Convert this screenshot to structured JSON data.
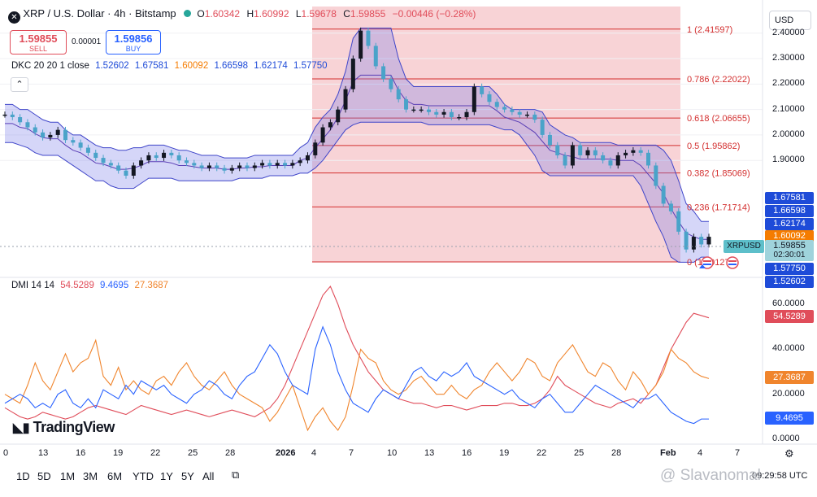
{
  "header": {
    "symbol_title": "XRP / U.S. Dollar · 4h · Bitstamp",
    "ohlc": {
      "o_label": "O",
      "o": "1.60342",
      "h_label": "H",
      "h": "1.60992",
      "l_label": "L",
      "l": "1.59678",
      "c_label": "C",
      "c": "1.59855",
      "change": "−0.00446 (−0.28%)"
    },
    "sell_price": "1.59855",
    "sell_label": "SELL",
    "spread": "0.00001",
    "buy_price": "1.59856",
    "buy_label": "BUY",
    "currency": "USD"
  },
  "indicators": {
    "dkc": {
      "label": "DKC 20 20 1 close",
      "values": [
        "1.52602",
        "1.67581",
        "1.60092",
        "1.66598",
        "1.62174",
        "1.57750"
      ]
    },
    "dmi": {
      "label": "DMI 14 14",
      "values": [
        "54.5289",
        "9.4695",
        "27.3687"
      ]
    },
    "collapse_icon": "chevron-up-icon"
  },
  "fib_levels": [
    {
      "label": "1 (2.41597)",
      "price": 2.41597
    },
    {
      "label": "0.786 (2.22022)",
      "price": 2.22022
    },
    {
      "label": "0.618 (2.06655)",
      "price": 2.06655
    },
    {
      "label": "0.5 (1.95862)",
      "price": 1.95862
    },
    {
      "label": "0.382 (1.85069)",
      "price": 1.85069
    },
    {
      "label": "0.236 (1.71714)",
      "price": 1.71714
    },
    {
      "label": "0 (1.50127)",
      "price": 1.50127
    }
  ],
  "price_axis": {
    "ticks": [
      "2.40000",
      "2.30000",
      "2.20000",
      "2.10000",
      "2.00000",
      "1.90000"
    ],
    "tick_values": [
      2.4,
      2.3,
      2.2,
      2.1,
      2.0,
      1.9
    ],
    "badges": [
      {
        "text": "1.67581",
        "price": 1.67581,
        "color": "#1e4bd8"
      },
      {
        "text": "1.66598",
        "price": 1.66598,
        "color": "#1e4bd8"
      },
      {
        "text": "1.62174",
        "price": 1.62174,
        "color": "#1e4bd8"
      },
      {
        "text": "1.60092",
        "price": 1.60092,
        "color": "#f57c00"
      },
      {
        "text": "1.57750",
        "price": 1.5775,
        "color": "#1e4bd8"
      },
      {
        "text": "1.52602",
        "price": 1.52602,
        "color": "#1e4bd8"
      }
    ],
    "current": {
      "symbol": "XRPUSD",
      "price": "1.59855",
      "countdown": "02:30:01"
    }
  },
  "dmi_axis": {
    "ticks": [
      "60.0000",
      "40.0000",
      "20.0000",
      "0.0000"
    ],
    "tick_values": [
      60,
      40,
      20,
      0
    ],
    "badges": [
      {
        "text": "54.5289",
        "value": 54.5289,
        "color": "#e04d5a"
      },
      {
        "text": "27.3687",
        "value": 27.3687,
        "color": "#f0852d"
      },
      {
        "text": "9.4695",
        "value": 9.4695,
        "color": "#2962ff"
      }
    ]
  },
  "time_axis": {
    "labels": [
      "0",
      "13",
      "16",
      "19",
      "22",
      "25",
      "28",
      "2026",
      "4",
      "7",
      "10",
      "13",
      "16",
      "19",
      "22",
      "25",
      "28",
      "Feb",
      "4",
      "7"
    ],
    "settings_icon": "gear-icon"
  },
  "bottom_bar": {
    "ranges": [
      "1D",
      "5D",
      "1M",
      "3M",
      "6M",
      "YTD",
      "1Y",
      "5Y",
      "All"
    ],
    "compare_icon": "calendar-range-icon",
    "clock": "09:29:58 UTC"
  },
  "branding": {
    "logo": "TradingView",
    "watermark": "@ Slavanomal"
  },
  "chart_data": {
    "type": "line",
    "price_range": [
      1.45,
      2.46
    ],
    "dmi_range": [
      0,
      68
    ],
    "price_series": [
      2.08,
      2.07,
      2.05,
      2.03,
      2.01,
      1.99,
      2.0,
      2.02,
      1.98,
      1.97,
      1.95,
      1.93,
      1.91,
      1.89,
      1.88,
      1.86,
      1.84,
      1.88,
      1.9,
      1.92,
      1.91,
      1.93,
      1.92,
      1.9,
      1.89,
      1.88,
      1.87,
      1.88,
      1.87,
      1.86,
      1.87,
      1.88,
      1.87,
      1.88,
      1.89,
      1.88,
      1.89,
      1.88,
      1.89,
      1.9,
      1.92,
      1.97,
      2.03,
      2.05,
      2.1,
      2.18,
      2.3,
      2.41,
      2.35,
      2.27,
      2.22,
      2.18,
      2.14,
      2.1,
      2.1,
      2.1,
      2.09,
      2.08,
      2.09,
      2.07,
      2.07,
      2.09,
      2.19,
      2.16,
      2.13,
      2.11,
      2.1,
      2.09,
      2.08,
      2.08,
      2.06,
      2.0,
      1.96,
      1.92,
      1.88,
      1.96,
      1.92,
      1.94,
      1.92,
      1.9,
      1.88,
      1.92,
      1.93,
      1.94,
      1.93,
      1.88,
      1.8,
      1.73,
      1.7,
      1.62,
      1.55,
      1.6,
      1.57,
      1.6
    ],
    "dkc_upper": [
      2.12,
      2.12,
      2.1,
      2.1,
      2.08,
      2.06,
      2.05,
      2.05,
      2.02,
      2.0,
      2.0,
      1.98,
      1.96,
      1.95,
      1.95,
      1.94,
      1.94,
      1.95,
      1.95,
      1.96,
      1.96,
      1.96,
      1.95,
      1.94,
      1.94,
      1.93,
      1.92,
      1.92,
      1.92,
      1.91,
      1.91,
      1.91,
      1.91,
      1.92,
      1.92,
      1.92,
      1.92,
      1.92,
      1.92,
      1.95,
      1.97,
      2.03,
      2.07,
      2.1,
      2.16,
      2.25,
      2.38,
      2.42,
      2.42,
      2.42,
      2.42,
      2.42,
      2.3,
      2.22,
      2.19,
      2.19,
      2.19,
      2.19,
      2.19,
      2.19,
      2.19,
      2.19,
      2.19,
      2.19,
      2.19,
      2.16,
      2.12,
      2.1,
      2.1,
      2.1,
      2.1,
      2.09,
      2.04,
      2.02,
      2.0,
      1.99,
      1.97,
      1.97,
      1.97,
      1.97,
      1.97,
      1.96,
      1.96,
      1.96,
      1.96,
      1.96,
      1.96,
      1.94,
      1.9,
      1.82,
      1.73,
      1.7,
      1.66,
      1.66
    ],
    "dkc_lower": [
      1.97,
      1.97,
      1.96,
      1.95,
      1.93,
      1.92,
      1.92,
      1.92,
      1.9,
      1.88,
      1.86,
      1.84,
      1.82,
      1.82,
      1.8,
      1.79,
      1.79,
      1.79,
      1.81,
      1.83,
      1.83,
      1.83,
      1.83,
      1.82,
      1.82,
      1.82,
      1.82,
      1.82,
      1.82,
      1.82,
      1.82,
      1.83,
      1.83,
      1.83,
      1.83,
      1.84,
      1.84,
      1.84,
      1.84,
      1.85,
      1.85,
      1.87,
      1.9,
      1.94,
      1.98,
      2.02,
      2.04,
      2.05,
      2.05,
      2.05,
      2.05,
      2.05,
      2.05,
      2.05,
      2.05,
      2.05,
      2.04,
      2.04,
      2.04,
      2.04,
      2.04,
      2.04,
      2.04,
      2.04,
      2.04,
      2.03,
      2.02,
      2.02,
      2.0,
      1.96,
      1.92,
      1.86,
      1.84,
      1.84,
      1.84,
      1.84,
      1.84,
      1.84,
      1.84,
      1.84,
      1.84,
      1.84,
      1.84,
      1.84,
      1.8,
      1.73,
      1.66,
      1.6,
      1.52,
      1.5,
      1.5,
      1.5,
      1.52,
      1.52
    ],
    "dmi_series": [
      {
        "name": "54.5289",
        "color": "#e04d5a",
        "values": [
          14,
          12,
          10,
          9,
          10,
          12,
          11,
          10,
          9,
          10,
          12,
          14,
          15,
          14,
          13,
          12,
          11,
          13,
          15,
          14,
          13,
          12,
          11,
          12,
          13,
          12,
          11,
          10,
          11,
          12,
          13,
          12,
          11,
          10,
          12,
          14,
          18,
          24,
          32,
          40,
          48,
          56,
          64,
          68,
          60,
          50,
          42,
          36,
          30,
          26,
          22,
          20,
          18,
          17,
          16,
          16,
          15,
          14,
          15,
          15,
          14,
          13,
          14,
          15,
          15,
          15,
          16,
          16,
          15,
          15,
          16,
          18,
          22,
          28,
          24,
          22,
          20,
          18,
          16,
          15,
          14,
          16,
          17,
          18,
          16,
          20,
          24,
          32,
          40,
          46,
          52,
          56,
          55,
          54
        ]
      },
      {
        "name": "27.3687",
        "color": "#f0852d",
        "values": [
          20,
          18,
          16,
          24,
          34,
          26,
          22,
          30,
          38,
          30,
          34,
          36,
          44,
          28,
          24,
          32,
          22,
          26,
          22,
          20,
          26,
          28,
          24,
          30,
          34,
          28,
          24,
          22,
          26,
          30,
          24,
          20,
          18,
          16,
          14,
          8,
          12,
          18,
          24,
          14,
          4,
          10,
          14,
          8,
          4,
          10,
          24,
          40,
          36,
          34,
          26,
          22,
          20,
          22,
          26,
          28,
          24,
          20,
          20,
          24,
          20,
          18,
          22,
          24,
          30,
          34,
          30,
          26,
          30,
          36,
          34,
          28,
          26,
          34,
          38,
          42,
          36,
          30,
          28,
          34,
          32,
          26,
          22,
          30,
          26,
          20,
          24,
          30,
          40,
          36,
          34,
          30,
          28,
          27
        ]
      },
      {
        "name": "9.4695",
        "color": "#2962ff",
        "values": [
          16,
          18,
          20,
          18,
          14,
          16,
          14,
          20,
          22,
          16,
          14,
          18,
          14,
          22,
          20,
          18,
          24,
          20,
          26,
          24,
          22,
          24,
          20,
          18,
          16,
          20,
          22,
          26,
          24,
          20,
          18,
          24,
          28,
          30,
          36,
          42,
          38,
          30,
          24,
          22,
          20,
          40,
          50,
          42,
          30,
          22,
          16,
          14,
          12,
          18,
          22,
          20,
          18,
          24,
          30,
          32,
          28,
          26,
          30,
          28,
          30,
          34,
          28,
          26,
          24,
          22,
          20,
          22,
          18,
          16,
          14,
          18,
          20,
          16,
          12,
          12,
          16,
          20,
          24,
          22,
          20,
          18,
          16,
          14,
          18,
          18,
          20,
          16,
          12,
          10,
          8,
          7,
          9,
          9
        ]
      }
    ]
  }
}
